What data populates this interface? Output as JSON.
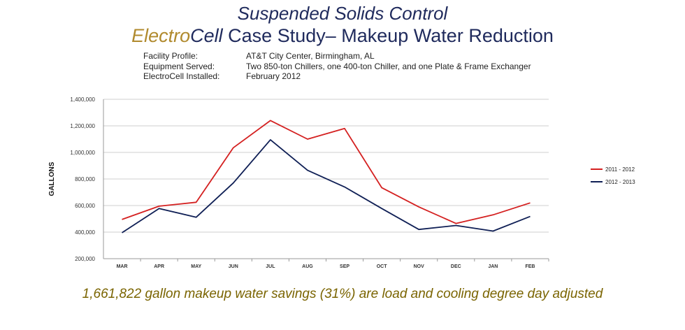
{
  "title": {
    "line1": "Suspended Solids Control",
    "brand_part1": "Electro",
    "brand_part2": "Cell",
    "line2_rest": " Case Study– Makeup Water Reduction"
  },
  "profile": [
    {
      "key": "Facility Profile:",
      "value": "AT&T City Center, Birmingham, AL"
    },
    {
      "key": "Equipment Served:",
      "value": "Two 850-ton Chillers, one 400-ton Chiller, and one Plate & Frame Exchanger"
    },
    {
      "key": "ElectroCell Installed:",
      "value": "February 2012"
    }
  ],
  "colors": {
    "title": "#1f2a5c",
    "brand": "#b08a2e",
    "footer": "#7a6400",
    "series1": "#d42020",
    "series2": "#0f1f55"
  },
  "chart_data": {
    "type": "line",
    "categories": [
      "MAR",
      "APR",
      "MAY",
      "JUN",
      "JUL",
      "AUG",
      "SEP",
      "OCT",
      "NOV",
      "DEC",
      "JAN",
      "FEB"
    ],
    "series": [
      {
        "name": "2011 - 2012",
        "color": "#d42020",
        "values": [
          495000,
          595000,
          625000,
          1035000,
          1240000,
          1100000,
          1180000,
          735000,
          590000,
          465000,
          530000,
          620000
        ]
      },
      {
        "name": "2012 - 2013",
        "color": "#0f1f55",
        "values": [
          395000,
          578000,
          512000,
          770000,
          1095000,
          865000,
          740000,
          578000,
          420000,
          450000,
          408000,
          518000
        ]
      }
    ],
    "ylabel": "GALLONS",
    "ylim": [
      200000,
      1400000
    ],
    "yticks": [
      "200,000",
      "400,000",
      "600,000",
      "800,000",
      "1,000,000",
      "1,200,000",
      "1,400,000"
    ],
    "grid": true,
    "legend": "right"
  },
  "footer": "1,661,822 gallon makeup water savings (31%) are load and cooling degree day adjusted"
}
